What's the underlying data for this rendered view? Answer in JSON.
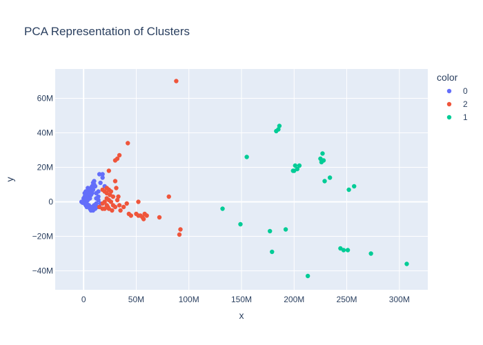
{
  "chart_data": {
    "type": "scatter",
    "title": "PCA Representation of Clusters",
    "xlabel": "x",
    "ylabel": "y",
    "xlim": [
      -27000000,
      327000000
    ],
    "ylim": [
      -51000000,
      77000000
    ],
    "x_ticks": [
      {
        "value": 0,
        "label": "0"
      },
      {
        "value": 50000000,
        "label": "50M"
      },
      {
        "value": 100000000,
        "label": "100M"
      },
      {
        "value": 150000000,
        "label": "150M"
      },
      {
        "value": 200000000,
        "label": "200M"
      },
      {
        "value": 250000000,
        "label": "250M"
      },
      {
        "value": 300000000,
        "label": "300M"
      }
    ],
    "y_ticks": [
      {
        "value": -40000000,
        "label": "−40M"
      },
      {
        "value": -20000000,
        "label": "−20M"
      },
      {
        "value": 0,
        "label": "0"
      },
      {
        "value": 20000000,
        "label": "20M"
      },
      {
        "value": 40000000,
        "label": "40M"
      },
      {
        "value": 60000000,
        "label": "60M"
      }
    ],
    "grid": true,
    "legend": {
      "title": "color",
      "placement": "right"
    },
    "series": [
      {
        "name": "0",
        "color": "#636efa",
        "points": [
          [
            -2000000,
            0
          ],
          [
            -1000000,
            -500000
          ],
          [
            0,
            500000
          ],
          [
            1000000,
            -1000000
          ],
          [
            2000000,
            1000000
          ],
          [
            0,
            2000000
          ],
          [
            3000000,
            2000000
          ],
          [
            1000000,
            3000000
          ],
          [
            4000000,
            1000000
          ],
          [
            2000000,
            -2000000
          ],
          [
            5000000,
            3000000
          ],
          [
            3000000,
            4000000
          ],
          [
            6000000,
            2000000
          ],
          [
            4000000,
            5000000
          ],
          [
            5000000,
            6000000
          ],
          [
            7000000,
            4000000
          ],
          [
            6000000,
            7000000
          ],
          [
            8000000,
            5000000
          ],
          [
            7000000,
            8000000
          ],
          [
            8000000,
            9000000
          ],
          [
            9000000,
            7000000
          ],
          [
            10000000,
            10000000
          ],
          [
            9000000,
            11000000
          ],
          [
            10000000,
            12000000
          ],
          [
            11000000,
            9000000
          ],
          [
            3000000,
            -3000000
          ],
          [
            5000000,
            -2000000
          ],
          [
            6000000,
            -4000000
          ],
          [
            8000000,
            -3000000
          ],
          [
            10000000,
            -2000000
          ],
          [
            12000000,
            -1000000
          ],
          [
            11000000,
            -4000000
          ],
          [
            13000000,
            -3000000
          ],
          [
            9000000,
            -5000000
          ],
          [
            7000000,
            -5000000
          ],
          [
            12000000,
            2000000
          ],
          [
            14000000,
            1000000
          ],
          [
            14000000,
            3000000
          ],
          [
            15000000,
            16000000
          ],
          [
            18000000,
            16000000
          ],
          [
            18000000,
            14000000
          ],
          [
            20000000,
            9000000
          ],
          [
            16000000,
            11000000
          ],
          [
            14000000,
            6000000
          ],
          [
            12000000,
            5000000
          ],
          [
            16000000,
            -1000000
          ],
          [
            2000000,
            6000000
          ],
          [
            4000000,
            8000000
          ],
          [
            1000000,
            5000000
          ],
          [
            3000000,
            -1000000
          ]
        ]
      },
      {
        "name": "2",
        "color": "#ef553b",
        "points": [
          [
            88000000,
            70000000
          ],
          [
            42000000,
            34000000
          ],
          [
            34000000,
            27000000
          ],
          [
            32000000,
            25000000
          ],
          [
            30000000,
            24000000
          ],
          [
            24000000,
            18000000
          ],
          [
            30000000,
            12000000
          ],
          [
            31000000,
            8000000
          ],
          [
            18000000,
            7000000
          ],
          [
            20000000,
            6000000
          ],
          [
            22000000,
            8000000
          ],
          [
            24000000,
            7000000
          ],
          [
            26000000,
            6000000
          ],
          [
            22000000,
            5000000
          ],
          [
            25000000,
            4000000
          ],
          [
            28000000,
            3000000
          ],
          [
            33000000,
            3000000
          ],
          [
            32000000,
            1000000
          ],
          [
            22000000,
            2000000
          ],
          [
            24000000,
            1000000
          ],
          [
            20000000,
            0
          ],
          [
            26000000,
            0
          ],
          [
            18000000,
            -1000000
          ],
          [
            22000000,
            -2000000
          ],
          [
            28000000,
            -2000000
          ],
          [
            20000000,
            -4000000
          ],
          [
            24000000,
            -4000000
          ],
          [
            27000000,
            -5000000
          ],
          [
            30000000,
            -3000000
          ],
          [
            34000000,
            -2000000
          ],
          [
            35000000,
            -5000000
          ],
          [
            38000000,
            -3000000
          ],
          [
            41000000,
            -1000000
          ],
          [
            43000000,
            -7000000
          ],
          [
            45000000,
            -8000000
          ],
          [
            50000000,
            -7000000
          ],
          [
            52000000,
            -8000000
          ],
          [
            54000000,
            -8000000
          ],
          [
            56000000,
            -9000000
          ],
          [
            58000000,
            -7000000
          ],
          [
            60000000,
            -8000000
          ],
          [
            52000000,
            0
          ],
          [
            57000000,
            -10000000
          ],
          [
            72000000,
            -9000000
          ],
          [
            81000000,
            3000000
          ],
          [
            92000000,
            -16000000
          ],
          [
            91000000,
            -19000000
          ],
          [
            15000000,
            -3000000
          ],
          [
            18000000,
            -4000000
          ],
          [
            23000000,
            -3000000
          ]
        ]
      },
      {
        "name": "1",
        "color": "#00cc96",
        "points": [
          [
            186000000,
            44000000
          ],
          [
            185000000,
            42000000
          ],
          [
            183000000,
            41000000
          ],
          [
            155000000,
            26000000
          ],
          [
            227000000,
            28000000
          ],
          [
            225000000,
            25000000
          ],
          [
            228000000,
            24000000
          ],
          [
            226000000,
            23000000
          ],
          [
            205000000,
            21000000
          ],
          [
            201000000,
            21000000
          ],
          [
            203000000,
            19000000
          ],
          [
            200000000,
            18000000
          ],
          [
            199000000,
            18000000
          ],
          [
            234000000,
            14000000
          ],
          [
            229000000,
            12000000
          ],
          [
            257000000,
            9000000
          ],
          [
            252000000,
            7000000
          ],
          [
            132000000,
            -4000000
          ],
          [
            149000000,
            -13000000
          ],
          [
            192000000,
            -16000000
          ],
          [
            177000000,
            -17000000
          ],
          [
            179000000,
            -29000000
          ],
          [
            213000000,
            -43000000
          ],
          [
            244000000,
            -27000000
          ],
          [
            247000000,
            -28000000
          ],
          [
            251000000,
            -28000000
          ],
          [
            273000000,
            -30000000
          ],
          [
            307000000,
            -36000000
          ]
        ]
      }
    ]
  }
}
